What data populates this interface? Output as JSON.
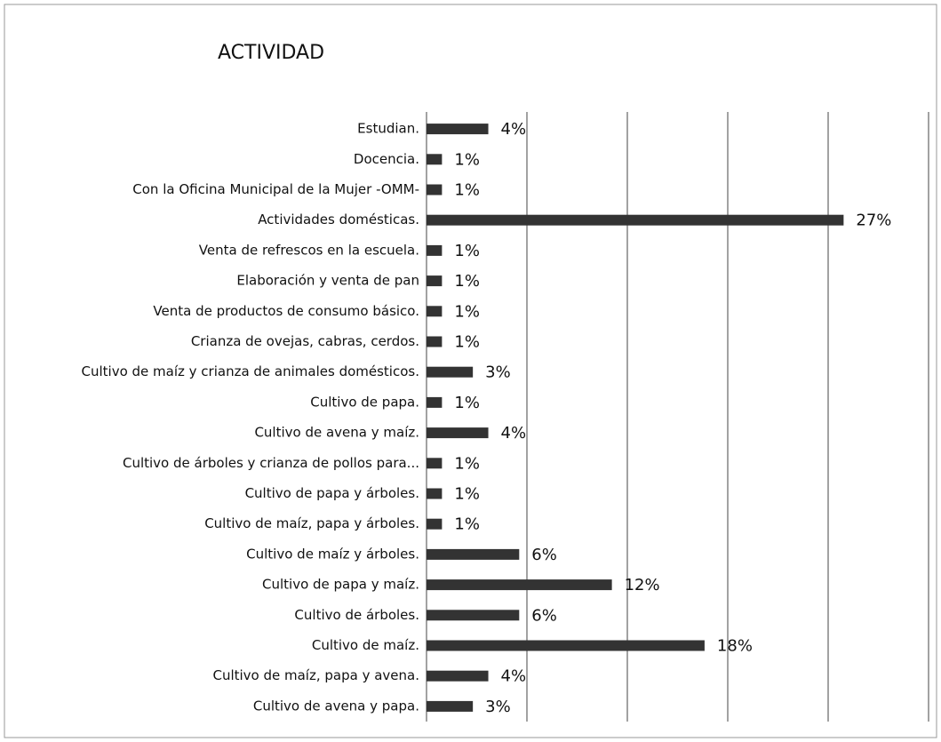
{
  "chart_data": {
    "type": "barh",
    "title": "ACTIVIDAD",
    "categories": [
      "Estudian.",
      "Docencia.",
      "Con la Oficina Municipal de la Mujer -OMM-",
      "Actividades domésticas.",
      "Venta de refrescos en la escuela.",
      "Elaboración y venta de pan",
      "Venta de productos de consumo básico.",
      "Crianza de ovejas, cabras, cerdos.",
      "Cultivo de maíz y crianza de animales domésticos.",
      "Cultivo de papa.",
      "Cultivo de avena y maíz.",
      "Cultivo de árboles y crianza de pollos para...",
      "Cultivo de papa y árboles.",
      "Cultivo de maíz, papa y árboles.",
      "Cultivo de maíz y árboles.",
      "Cultivo de papa y maíz.",
      "Cultivo de árboles.",
      "Cultivo de maíz.",
      "Cultivo de maíz, papa y avena.",
      "Cultivo de avena y papa."
    ],
    "values": [
      4,
      1,
      1,
      27,
      1,
      1,
      1,
      1,
      3,
      1,
      4,
      1,
      1,
      1,
      6,
      12,
      6,
      18,
      4,
      3
    ],
    "value_labels": [
      "4%",
      "1%",
      "1%",
      "27%",
      "1%",
      "1%",
      "1%",
      "1%",
      "3%",
      "1%",
      "4%",
      "1%",
      "1%",
      "1%",
      "6%",
      "12%",
      "6%",
      "18%",
      "4%",
      "3%"
    ],
    "color": "#333333",
    "xlim": [
      0,
      32.5
    ],
    "xticks": [
      0,
      6.5,
      13,
      19.5,
      26,
      32.5
    ],
    "grid": true
  }
}
